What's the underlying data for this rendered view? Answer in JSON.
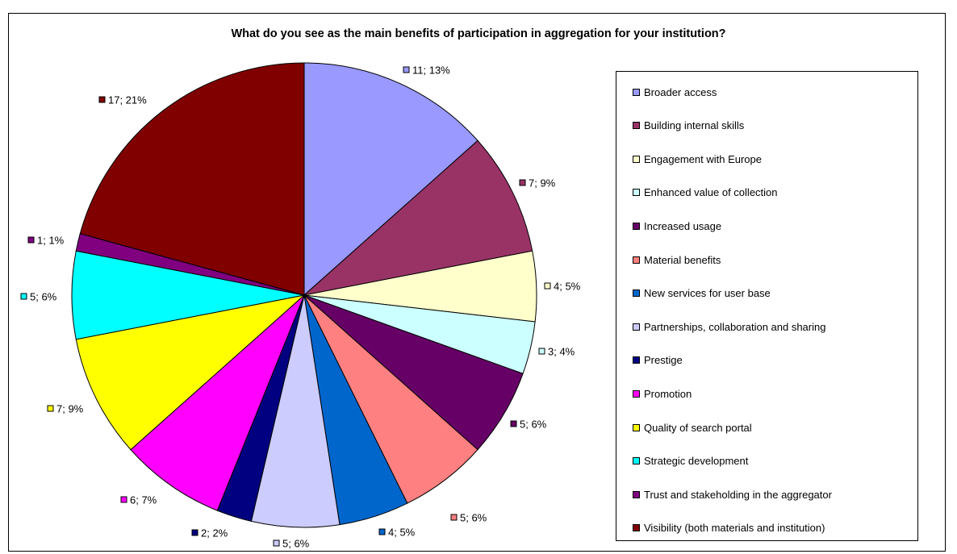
{
  "chart_data": {
    "type": "pie",
    "title": "What do you see as the main benefits of participation in aggregation for your institution?",
    "legend_position": "right",
    "slices": [
      {
        "name": "Broader access",
        "value": 11,
        "percent": "13%",
        "label": "11; 13%",
        "color": "#9999FF"
      },
      {
        "name": "Building internal skills",
        "value": 7,
        "percent": "9%",
        "label": "7; 9%",
        "color": "#993366"
      },
      {
        "name": "Engagement with Europe",
        "value": 4,
        "percent": "5%",
        "label": "4; 5%",
        "color": "#FFFFCC"
      },
      {
        "name": "Enhanced value of collection",
        "value": 3,
        "percent": "4%",
        "label": "3; 4%",
        "color": "#CCFFFF"
      },
      {
        "name": "Increased usage",
        "value": 5,
        "percent": "6%",
        "label": "5; 6%",
        "color": "#660066"
      },
      {
        "name": "Material benefits",
        "value": 5,
        "percent": "6%",
        "label": "5; 6%",
        "color": "#FF8080"
      },
      {
        "name": "New services for user base",
        "value": 4,
        "percent": "5%",
        "label": "4; 5%",
        "color": "#0066CC"
      },
      {
        "name": "Partnerships, collaboration and sharing",
        "value": 5,
        "percent": "6%",
        "label": "5; 6%",
        "color": "#CCCCFF"
      },
      {
        "name": "Prestige",
        "value": 2,
        "percent": "2%",
        "label": "2; 2%",
        "color": "#000080"
      },
      {
        "name": "Promotion",
        "value": 6,
        "percent": "7%",
        "label": "6; 7%",
        "color": "#FF00FF"
      },
      {
        "name": "Quality of search portal",
        "value": 7,
        "percent": "9%",
        "label": "7; 9%",
        "color": "#FFFF00"
      },
      {
        "name": "Strategic development",
        "value": 5,
        "percent": "6%",
        "label": "5; 6%",
        "color": "#00FFFF"
      },
      {
        "name": "Trust and stakeholding in the aggregator",
        "value": 1,
        "percent": "1%",
        "label": "1; 1%",
        "color": "#800080"
      },
      {
        "name": "Visibility (both materials and institution)",
        "value": 17,
        "percent": "21%",
        "label": "17; 21%",
        "color": "#800000"
      }
    ]
  }
}
